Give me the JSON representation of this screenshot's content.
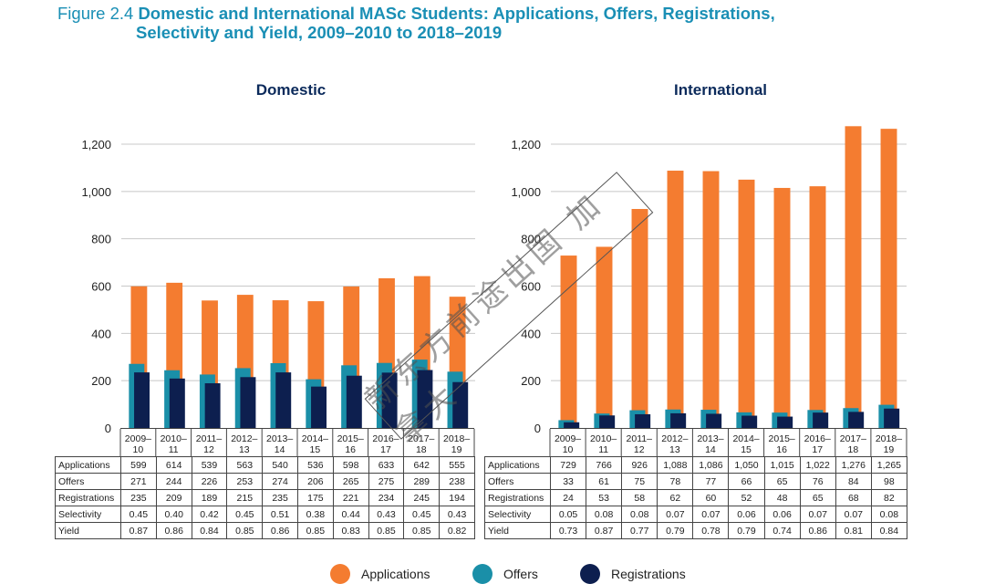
{
  "figure": {
    "label": "Figure 2.4",
    "title_line1": "Domestic and International MASc Students: Applications, Offers, Registrations,",
    "title_line2": "Selectivity and Yield, 2009–2010 to 2018–2019"
  },
  "colors": {
    "applications": "#f47c30",
    "offers": "#1a8fa8",
    "registrations": "#0d1f4f",
    "title": "#1a8fb5",
    "panel_title": "#0b2a5b"
  },
  "legend": {
    "applications": "Applications",
    "offers": "Offers",
    "registrations": "Registrations"
  },
  "watermark": "新东方前途出国 加拿大",
  "chart_data": [
    {
      "type": "bar",
      "title": "Domestic",
      "categories": [
        [
          "2009–",
          "10"
        ],
        [
          "2010–",
          "11"
        ],
        [
          "2011–",
          "12"
        ],
        [
          "2012–",
          "13"
        ],
        [
          "2013–",
          "14"
        ],
        [
          "2014–",
          "15"
        ],
        [
          "2015–",
          "16"
        ],
        [
          "2016–",
          "17"
        ],
        [
          "2017–",
          "18"
        ],
        [
          "2018–",
          "19"
        ]
      ],
      "yticks": [
        "0",
        "200",
        "400",
        "600",
        "800",
        "1,000",
        "1,200"
      ],
      "ylim": [
        0,
        1200
      ],
      "series": [
        {
          "name": "Applications",
          "values": [
            599,
            614,
            539,
            563,
            540,
            536,
            598,
            633,
            642,
            555
          ]
        },
        {
          "name": "Offers",
          "values": [
            271,
            244,
            226,
            253,
            274,
            206,
            265,
            275,
            289,
            238
          ]
        },
        {
          "name": "Registrations",
          "values": [
            235,
            209,
            189,
            215,
            235,
            175,
            221,
            234,
            245,
            194
          ]
        }
      ],
      "table": [
        {
          "label": "Applications",
          "values": [
            "599",
            "614",
            "539",
            "563",
            "540",
            "536",
            "598",
            "633",
            "642",
            "555"
          ]
        },
        {
          "label": "Offers",
          "values": [
            "271",
            "244",
            "226",
            "253",
            "274",
            "206",
            "265",
            "275",
            "289",
            "238"
          ]
        },
        {
          "label": "Registrations",
          "values": [
            "235",
            "209",
            "189",
            "215",
            "235",
            "175",
            "221",
            "234",
            "245",
            "194"
          ]
        },
        {
          "label": "Selectivity",
          "values": [
            "0.45",
            "0.40",
            "0.42",
            "0.45",
            "0.51",
            "0.38",
            "0.44",
            "0.43",
            "0.45",
            "0.43"
          ]
        },
        {
          "label": "Yield",
          "values": [
            "0.87",
            "0.86",
            "0.84",
            "0.85",
            "0.86",
            "0.85",
            "0.83",
            "0.85",
            "0.85",
            "0.82"
          ]
        }
      ]
    },
    {
      "type": "bar",
      "title": "International",
      "categories": [
        [
          "2009–",
          "10"
        ],
        [
          "2010–",
          "11"
        ],
        [
          "2011–",
          "12"
        ],
        [
          "2012–",
          "13"
        ],
        [
          "2013–",
          "14"
        ],
        [
          "2014–",
          "15"
        ],
        [
          "2015–",
          "16"
        ],
        [
          "2016–",
          "17"
        ],
        [
          "2017–",
          "18"
        ],
        [
          "2018–",
          "19"
        ]
      ],
      "yticks": [
        "0",
        "200",
        "400",
        "600",
        "800",
        "1,000",
        "1,200"
      ],
      "ylim": [
        0,
        1200
      ],
      "series": [
        {
          "name": "Applications",
          "values": [
            729,
            766,
            926,
            1088,
            1086,
            1050,
            1015,
            1022,
            1276,
            1265
          ]
        },
        {
          "name": "Offers",
          "values": [
            33,
            61,
            75,
            78,
            77,
            66,
            65,
            76,
            84,
            98
          ]
        },
        {
          "name": "Registrations",
          "values": [
            24,
            53,
            58,
            62,
            60,
            52,
            48,
            65,
            68,
            82
          ]
        }
      ],
      "table": [
        {
          "label": "Applications",
          "values": [
            "729",
            "766",
            "926",
            "1,088",
            "1,086",
            "1,050",
            "1,015",
            "1,022",
            "1,276",
            "1,265"
          ]
        },
        {
          "label": "Offers",
          "values": [
            "33",
            "61",
            "75",
            "78",
            "77",
            "66",
            "65",
            "76",
            "84",
            "98"
          ]
        },
        {
          "label": "Registrations",
          "values": [
            "24",
            "53",
            "58",
            "62",
            "60",
            "52",
            "48",
            "65",
            "68",
            "82"
          ]
        },
        {
          "label": "Selectivity",
          "values": [
            "0.05",
            "0.08",
            "0.08",
            "0.07",
            "0.07",
            "0.06",
            "0.06",
            "0.07",
            "0.07",
            "0.08"
          ]
        },
        {
          "label": "Yield",
          "values": [
            "0.73",
            "0.87",
            "0.77",
            "0.79",
            "0.78",
            "0.79",
            "0.74",
            "0.86",
            "0.81",
            "0.84"
          ]
        }
      ]
    }
  ]
}
